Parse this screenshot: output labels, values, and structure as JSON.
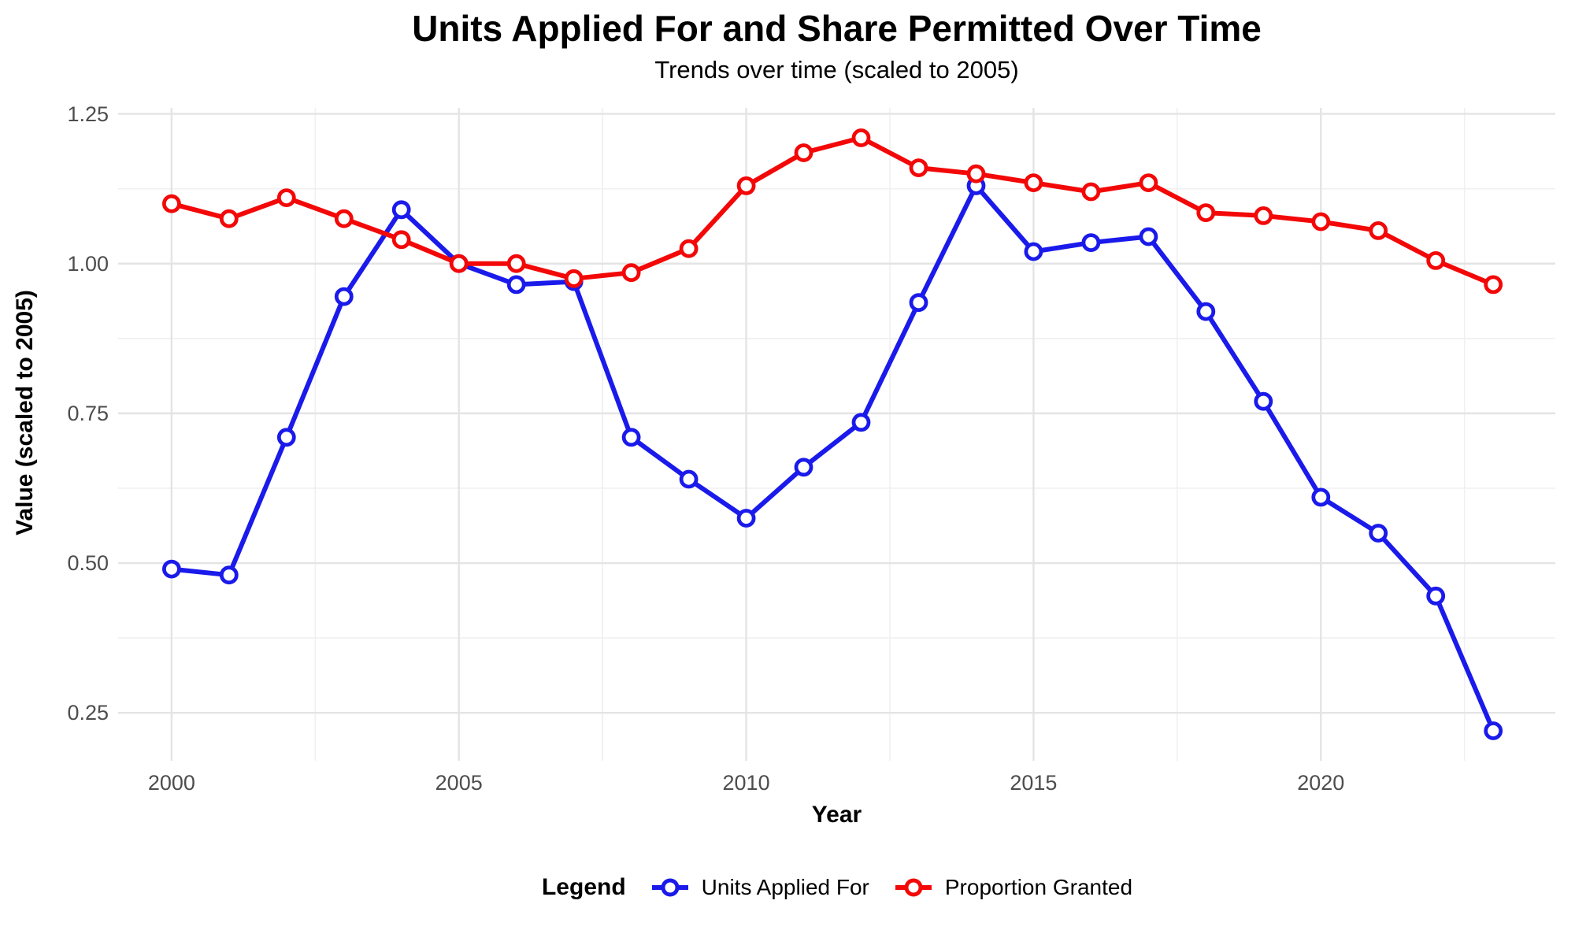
{
  "page": {
    "title": "Units Applied For and Share Permitted Over Time",
    "subtitle": "Trends over time (scaled to 2005)"
  },
  "axes": {
    "x_label": "Year",
    "y_label": "Value (scaled to 2005)",
    "x_tick_labels": [
      "2000",
      "2005",
      "2010",
      "2015",
      "2020"
    ],
    "y_tick_labels": [
      "0.25",
      "0.50",
      "0.75",
      "1.00",
      "1.25"
    ]
  },
  "legend": {
    "title": "Legend",
    "items": [
      {
        "label": "Units Applied For",
        "color": "#1A1AEB"
      },
      {
        "label": "Proportion Granted",
        "color": "#F30808"
      }
    ]
  },
  "colors": {
    "blue_series": "#1A1AEB",
    "red_series": "#F30808",
    "grid_major": "#E4E4E4",
    "grid_minor": "#F0F0F0",
    "tick_text": "#4D4D4D",
    "background": "#FFFFFF"
  },
  "chart_data": {
    "type": "line",
    "title": "Units Applied For and Share Permitted Over Time",
    "subtitle": "Trends over time (scaled to 2005)",
    "xlabel": "Year",
    "ylabel": "Value (scaled to 2005)",
    "grid": true,
    "legend_position": "bottom",
    "marker": "open-circle",
    "xlim": [
      1999.07,
      2024.08
    ],
    "ylim": [
      0.17,
      1.26
    ],
    "x_major_ticks": [
      2000,
      2005,
      2010,
      2015,
      2020
    ],
    "x_minor_ticks": [
      2002.5,
      2007.5,
      2012.5,
      2017.5,
      2022.5
    ],
    "y_major_ticks": [
      0.25,
      0.5,
      0.75,
      1.0,
      1.25
    ],
    "y_minor_ticks": [
      0.375,
      0.625,
      0.875,
      1.125
    ],
    "x": [
      2000,
      2001,
      2002,
      2003,
      2004,
      2005,
      2006,
      2007,
      2008,
      2009,
      2010,
      2011,
      2012,
      2013,
      2014,
      2015,
      2016,
      2017,
      2018,
      2019,
      2020,
      2021,
      2022,
      2023
    ],
    "series": [
      {
        "name": "Units Applied For",
        "color": "#1A1AEB",
        "values": [
          0.49,
          0.48,
          0.71,
          0.945,
          1.09,
          1.0,
          0.965,
          0.97,
          0.71,
          0.64,
          0.575,
          0.66,
          0.735,
          0.935,
          1.13,
          1.02,
          1.035,
          1.045,
          0.92,
          0.77,
          0.61,
          0.55,
          0.445,
          0.22
        ]
      },
      {
        "name": "Proportion Granted",
        "color": "#F30808",
        "values": [
          1.1,
          1.075,
          1.11,
          1.075,
          1.04,
          1.0,
          1.0,
          0.975,
          0.985,
          1.025,
          1.13,
          1.185,
          1.21,
          1.16,
          1.15,
          1.135,
          1.12,
          1.135,
          1.085,
          1.08,
          1.07,
          1.055,
          1.005,
          0.965
        ]
      }
    ]
  }
}
